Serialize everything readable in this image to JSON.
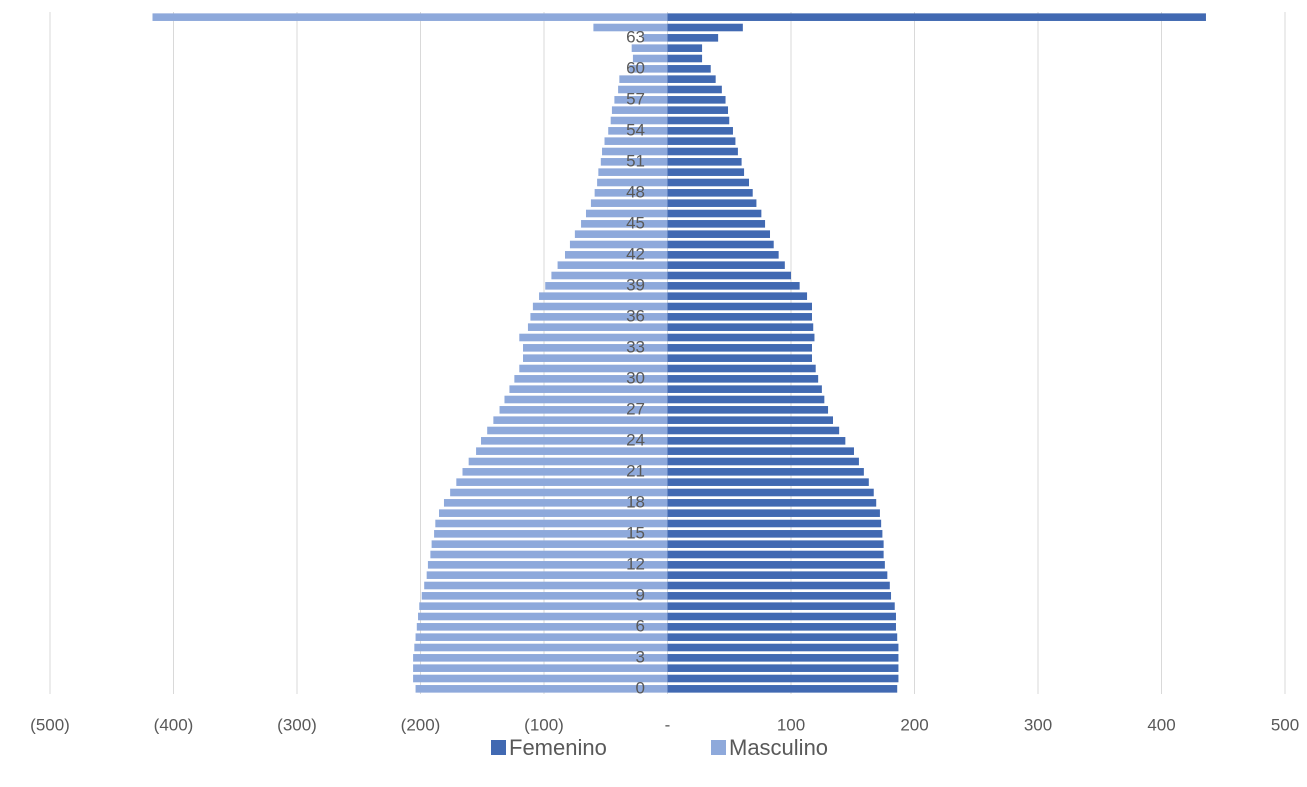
{
  "chart_data": {
    "type": "pyramid",
    "categories": [
      "0",
      null,
      null,
      "3",
      null,
      null,
      "6",
      null,
      null,
      "9",
      null,
      null,
      "12",
      null,
      null,
      "15",
      null,
      null,
      "18",
      null,
      null,
      "21",
      null,
      null,
      "24",
      null,
      null,
      "27",
      null,
      null,
      "30",
      null,
      null,
      "33",
      null,
      null,
      "36",
      null,
      null,
      "39",
      null,
      null,
      "42",
      null,
      null,
      "45",
      null,
      null,
      "48",
      null,
      null,
      "51",
      null,
      null,
      "54",
      null,
      null,
      "57",
      null,
      null,
      "60",
      null,
      null,
      "63",
      null,
      null
    ],
    "series": [
      {
        "name": "Femenino",
        "color": "#4169b2",
        "values": [
          186,
          187,
          187,
          187,
          187,
          186,
          185,
          185,
          184,
          181,
          180,
          178,
          176,
          175,
          175,
          174,
          173,
          172,
          169,
          167,
          163,
          159,
          155,
          151,
          144,
          139,
          134,
          130,
          127,
          125,
          122,
          120,
          117,
          117,
          119,
          118,
          117,
          117,
          113,
          107,
          100,
          95,
          90,
          86,
          83,
          79,
          76,
          72,
          69,
          66,
          62,
          60,
          57,
          55,
          53,
          50,
          49,
          47,
          44,
          39,
          35,
          28,
          28,
          41,
          61,
          436
        ]
      },
      {
        "name": "Masculino",
        "color": "#8ea9db",
        "values": [
          -204,
          -206,
          -206,
          -206,
          -205,
          -204,
          -203,
          -202,
          -201,
          -199,
          -197,
          -195,
          -194,
          -192,
          -191,
          -189,
          -188,
          -185,
          -181,
          -176,
          -171,
          -166,
          -161,
          -155,
          -151,
          -146,
          -141,
          -136,
          -132,
          -128,
          -124,
          -120,
          -117,
          -117,
          -120,
          -113,
          -111,
          -109,
          -104,
          -99,
          -94,
          -89,
          -83,
          -79,
          -75,
          -70,
          -66,
          -62,
          -59,
          -57,
          -56,
          -54,
          -53,
          -51,
          -48,
          -46,
          -45,
          -43,
          -40,
          -39,
          -31,
          -28,
          -29,
          -20,
          -60,
          -417
        ]
      }
    ],
    "xlim": [
      -500,
      500
    ],
    "xticks": [
      {
        "value": -500,
        "label": "(500)"
      },
      {
        "value": -400,
        "label": "(400)"
      },
      {
        "value": -300,
        "label": "(300)"
      },
      {
        "value": -200,
        "label": "(200)"
      },
      {
        "value": -100,
        "label": "(100)"
      },
      {
        "value": 0,
        "label": "-"
      },
      100,
      200,
      300,
      400,
      500
    ],
    "grid": true,
    "legend": "bottom"
  }
}
